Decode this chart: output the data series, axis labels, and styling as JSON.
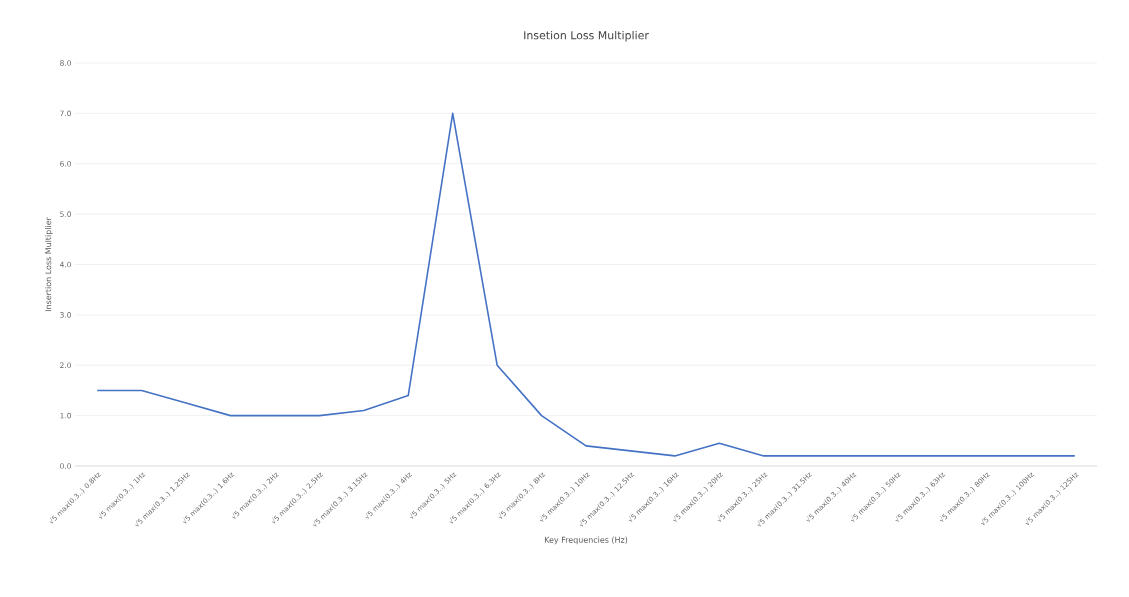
{
  "chart_data": {
    "type": "line",
    "title": "Insetion Loss Multiplier",
    "xlabel": "Key Frequencies (Hz)",
    "ylabel": "Insertion Loss Multiplier",
    "categories": [
      "√5 max(0.3..) 0.8Hz",
      "√5 max(0.3..) 1Hz",
      "√5 max(0.3..) 1.25Hz",
      "√5 max(0.3..) 1.6Hz",
      "√5 max(0.3..) 2Hz",
      "√5 max(0.3..) 2.5Hz",
      "√5 max(0.3..) 3.15Hz",
      "√5 max(0.3..) 4Hz",
      "√5 max(0.3..) 5Hz",
      "√5 max(0.3..) 6.3Hz",
      "√5 max(0.3..) 8Hz",
      "√5 max(0.3..) 10Hz",
      "√5 max(0.3..) 12.5Hz",
      "√5 max(0.3..) 16Hz",
      "√5 max(0.3..) 20Hz",
      "√5 max(0.3..) 25Hz",
      "√5 max(0.3..) 31.5Hz",
      "√5 max(0.3..) 40Hz",
      "√5 max(0.3..) 50Hz",
      "√5 max(0.3..) 63Hz",
      "√5 max(0.3..) 80Hz",
      "√5 max(0.3..) 100Hz",
      "√5 max(0.3..) 125Hz"
    ],
    "values": [
      1.5,
      1.5,
      1.25,
      1.0,
      1.0,
      1.0,
      1.1,
      1.4,
      7.0,
      2.0,
      1.0,
      0.4,
      0.3,
      0.2,
      0.45,
      0.2,
      0.2,
      0.2,
      0.2,
      0.2,
      0.2,
      0.2,
      0.2
    ],
    "color": "#4472c4",
    "ylim": [
      0,
      8
    ],
    "yticks": [
      {
        "value": 0,
        "label": "0.0"
      },
      {
        "value": 1,
        "label": "1.0"
      },
      {
        "value": 2,
        "label": "2.0"
      },
      {
        "value": 3,
        "label": "3.0"
      },
      {
        "value": 4,
        "label": "4.0"
      },
      {
        "value": 5,
        "label": "5.0"
      },
      {
        "value": 6,
        "label": "6.0"
      },
      {
        "value": 7,
        "label": "7.0"
      },
      {
        "value": 8,
        "label": "8.0"
      }
    ],
    "grid": "y",
    "marker": "none",
    "line_style": "solid"
  }
}
